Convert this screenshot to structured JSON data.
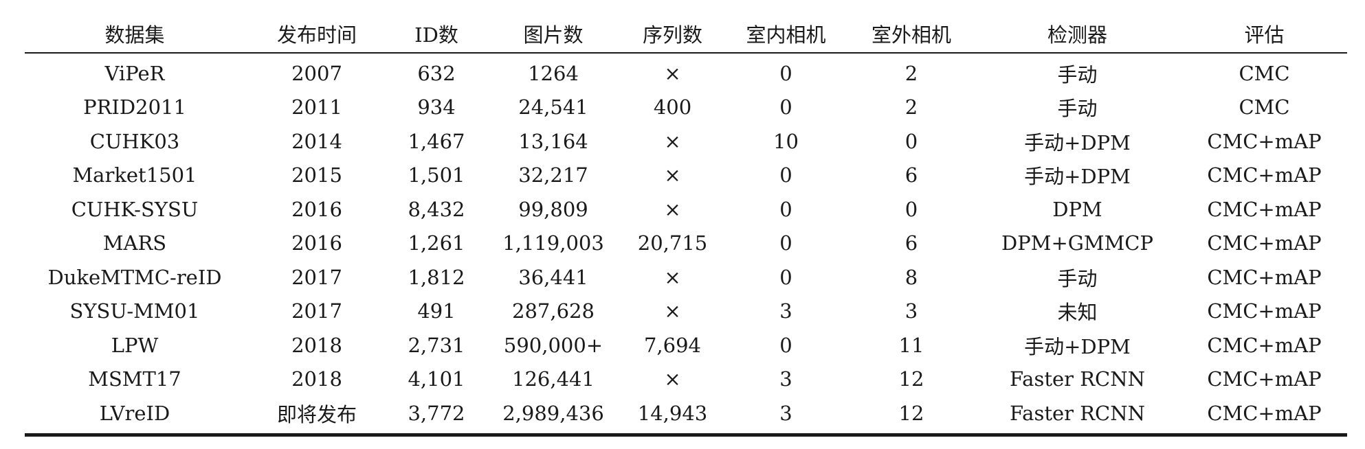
{
  "table": {
    "headers": [
      "数据集",
      "发布时间",
      "ID数",
      "图片数",
      "序列数",
      "室内相机",
      "室外相机",
      "检测器",
      "评估"
    ],
    "rows": [
      [
        "ViPeR",
        "2007",
        "632",
        "1264",
        "×",
        "0",
        "2",
        "手动",
        "CMC"
      ],
      [
        "PRID2011",
        "2011",
        "934",
        "24,541",
        "400",
        "0",
        "2",
        "手动",
        "CMC"
      ],
      [
        "CUHK03",
        "2014",
        "1,467",
        "13,164",
        "×",
        "10",
        "0",
        "手动+DPM",
        "CMC+mAP"
      ],
      [
        "Market1501",
        "2015",
        "1,501",
        "32,217",
        "×",
        "0",
        "6",
        "手动+DPM",
        "CMC+mAP"
      ],
      [
        "CUHK-SYSU",
        "2016",
        "8,432",
        "99,809",
        "×",
        "0",
        "0",
        "DPM",
        "CMC+mAP"
      ],
      [
        "MARS",
        "2016",
        "1,261",
        "1,119,003",
        "20,715",
        "0",
        "6",
        "DPM+GMMCP",
        "CMC+mAP"
      ],
      [
        "DukeMTMC-reID",
        "2017",
        "1,812",
        "36,441",
        "×",
        "0",
        "8",
        "手动",
        "CMC+mAP"
      ],
      [
        "SYSU-MM01",
        "2017",
        "491",
        "287,628",
        "×",
        "3",
        "3",
        "未知",
        "CMC+mAP"
      ],
      [
        "LPW",
        "2018",
        "2,731",
        "590,000+",
        "7,694",
        "0",
        "11",
        "手动+DPM",
        "CMC+mAP"
      ],
      [
        "MSMT17",
        "2018",
        "4,101",
        "126,441",
        "×",
        "3",
        "12",
        "Faster RCNN",
        "CMC+mAP"
      ],
      [
        "LVreID",
        "即将发布",
        "3,772",
        "2,989,436",
        "14,943",
        "3",
        "12",
        "Faster RCNN",
        "CMC+mAP"
      ]
    ]
  }
}
